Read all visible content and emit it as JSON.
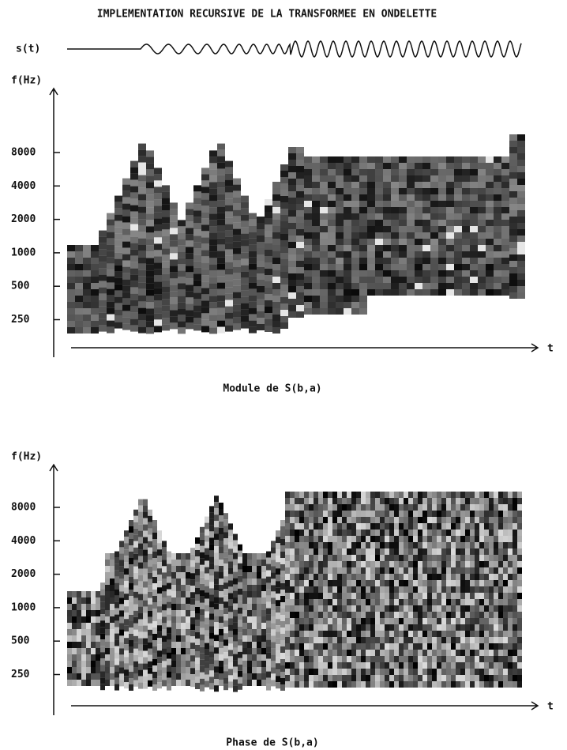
{
  "title": "IMPLEMENTATION RECURSIVE DE LA TRANSFORMEE EN ONDELETTE",
  "signal_label": "s(t)",
  "panels": [
    {
      "y_label": "f(Hz)",
      "ticks": [
        "8000",
        "4000",
        "2000",
        "1000",
        "500",
        "250"
      ],
      "x_label": "t",
      "caption": "Module de S(b,a)"
    },
    {
      "y_label": "f(Hz)",
      "ticks": [
        "8000",
        "4000",
        "2000",
        "1000",
        "500",
        "250"
      ],
      "x_label": "t",
      "caption": "Phase de S(b,a)"
    }
  ]
}
